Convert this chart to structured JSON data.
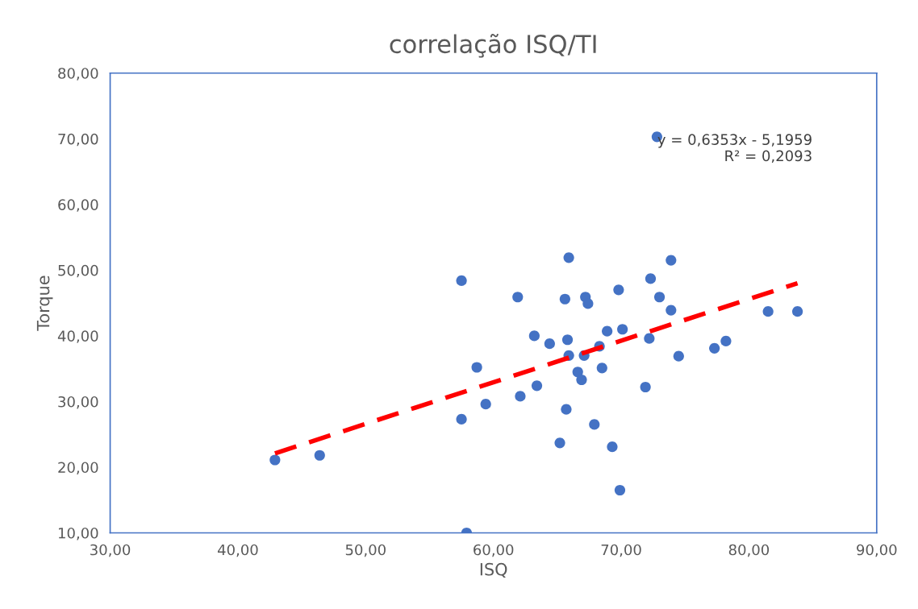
{
  "chart_data": {
    "type": "scatter",
    "title": "correlação ISQ/TI",
    "xlabel": "ISQ",
    "ylabel": "Torque",
    "xlim": [
      30,
      90
    ],
    "ylim": [
      10,
      80
    ],
    "xticks": [
      {
        "value": 30,
        "label": "30,00"
      },
      {
        "value": 40,
        "label": "40,00"
      },
      {
        "value": 50,
        "label": "50,00"
      },
      {
        "value": 60,
        "label": "60,00"
      },
      {
        "value": 70,
        "label": "70,00"
      },
      {
        "value": 80,
        "label": "80,00"
      },
      {
        "value": 90,
        "label": "90,00"
      }
    ],
    "yticks": [
      {
        "value": 10,
        "label": "10,00"
      },
      {
        "value": 20,
        "label": "20,00"
      },
      {
        "value": 30,
        "label": "30,00"
      },
      {
        "value": 40,
        "label": "40,00"
      },
      {
        "value": 50,
        "label": "50,00"
      },
      {
        "value": 60,
        "label": "60,00"
      },
      {
        "value": 70,
        "label": "70,00"
      },
      {
        "value": 80,
        "label": "80,00"
      }
    ],
    "grid": false,
    "legend": false,
    "series": [
      {
        "color": "#4472c4",
        "marker": "circle",
        "x": [
          42.9,
          46.4,
          57.5,
          57.5,
          57.9,
          58.7,
          59.4,
          61.9,
          62.1,
          63.2,
          63.4,
          64.4,
          65.2,
          65.6,
          65.9,
          65.8,
          65.9,
          65.7,
          66.6,
          66.9,
          67.1,
          67.2,
          67.4,
          67.9,
          68.3,
          68.5,
          68.9,
          69.3,
          69.8,
          69.9,
          70.1,
          71.9,
          72.2,
          72.3,
          72.8,
          73.0,
          73.9,
          73.9,
          74.5,
          77.3,
          78.2,
          81.5,
          83.8
        ],
        "values": [
          21.1,
          21.8,
          48.4,
          27.3,
          10.0,
          35.2,
          29.6,
          45.9,
          30.8,
          40.0,
          32.4,
          38.8,
          23.7,
          45.6,
          51.9,
          39.4,
          37.0,
          28.8,
          34.5,
          33.3,
          37.0,
          45.9,
          44.9,
          26.5,
          38.4,
          35.1,
          40.7,
          23.1,
          47.0,
          16.5,
          41.0,
          32.2,
          39.6,
          48.7,
          70.3,
          45.9,
          51.5,
          43.9,
          36.9,
          38.1,
          39.2,
          43.7,
          43.7
        ]
      },
      {
        "type": "line",
        "color": "#ff0000",
        "line_style": "dashed",
        "marker": "none",
        "x": [
          42.9,
          83.8
        ],
        "values": [
          22.1,
          48.0
        ]
      }
    ],
    "annotations": [
      "y = 0,6353x - 5,1959\nR² = 0,2093"
    ]
  }
}
